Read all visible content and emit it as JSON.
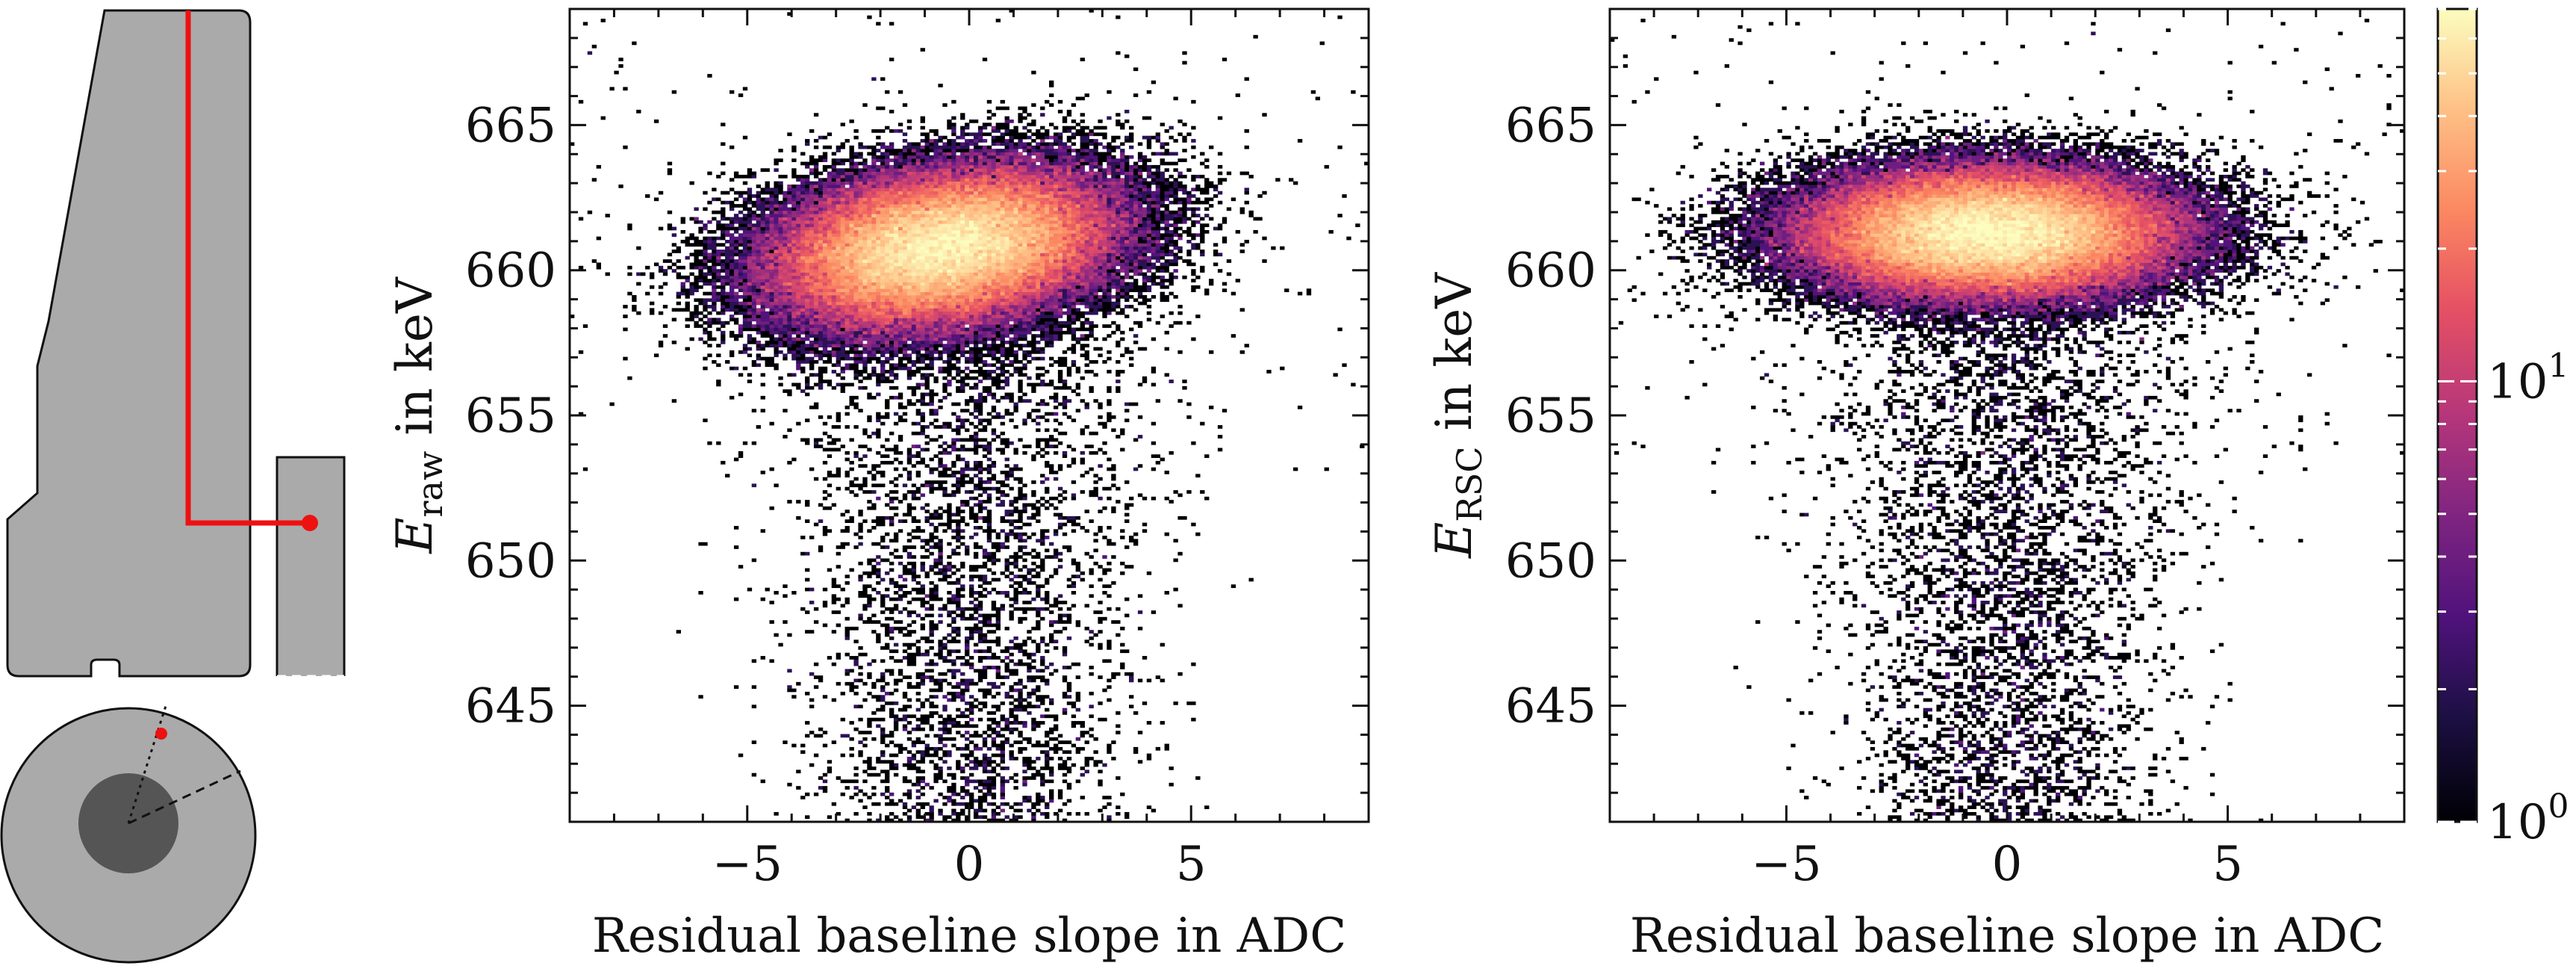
{
  "chart_data": [
    {
      "type": "diagram",
      "description": "Detector cross-section schematic with red marker",
      "colors": {
        "body": "#aaaaaa",
        "core": "#555555",
        "marker": "#ee1111"
      }
    },
    {
      "type": "heatmap",
      "title": "",
      "ylabel_main": "E",
      "ylabel_sub": "raw",
      "ylabel_suffix": " in keV",
      "xlabel": "Residual baseline slope in ADC",
      "xlim": [
        -9,
        9
      ],
      "ylim": [
        641,
        669
      ],
      "xticks": [
        -5,
        0,
        5
      ],
      "yticks": [
        645,
        650,
        655,
        660,
        665
      ],
      "cluster": {
        "x_center": -0.6,
        "y_center": 660.8,
        "x_sigma": 1.9,
        "y_sigma": 1.3,
        "tilt": 0.18
      },
      "tail": {
        "x_center": 0.0,
        "x_sigma": 1.7,
        "y_start": 658,
        "y_end": 641
      }
    },
    {
      "type": "heatmap",
      "title": "",
      "ylabel_main": "E",
      "ylabel_sub": "RSC",
      "ylabel_suffix": " in keV",
      "xlabel": "Residual baseline slope in ADC",
      "xlim": [
        -9,
        9
      ],
      "ylim": [
        641,
        669
      ],
      "xticks": [
        -5,
        0,
        5
      ],
      "yticks": [
        645,
        650,
        655,
        660,
        665
      ],
      "cluster": {
        "x_center": -0.4,
        "y_center": 661.3,
        "x_sigma": 2.1,
        "y_sigma": 1.1,
        "tilt": 0.0
      },
      "tail": {
        "x_center": 0.0,
        "x_sigma": 1.7,
        "y_start": 658,
        "y_end": 641
      }
    }
  ],
  "colorbar": {
    "scale": "log",
    "range": [
      1,
      70
    ],
    "ticks": [
      {
        "value": 1,
        "base": "10",
        "exp": "0"
      },
      {
        "value": 10,
        "base": "10",
        "exp": "1"
      }
    ],
    "colormap": "magma"
  }
}
